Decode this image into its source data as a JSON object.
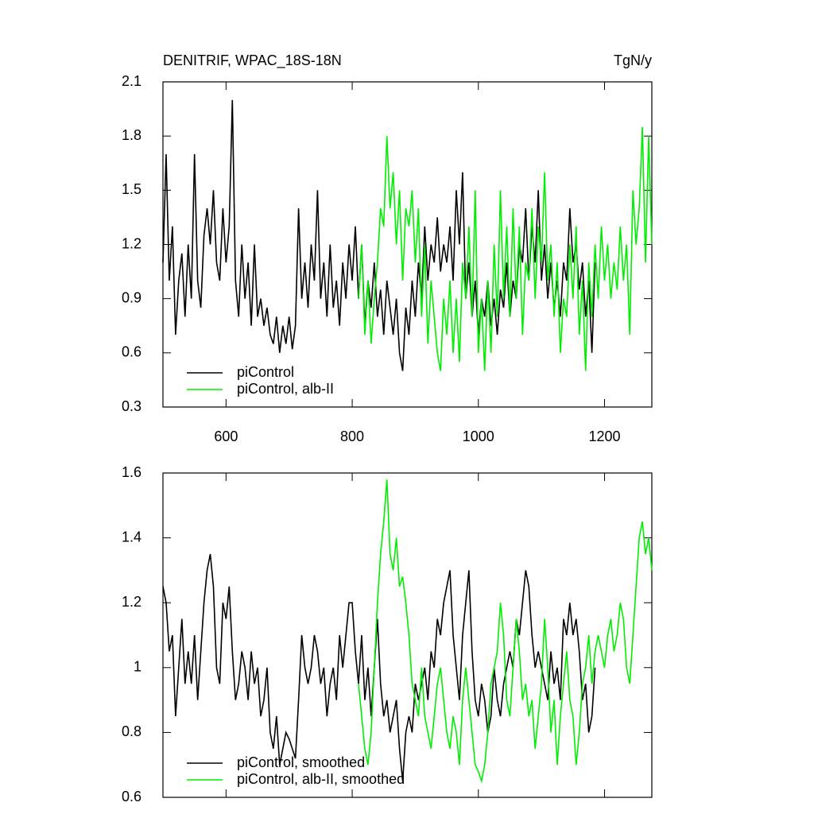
{
  "chart_data": [
    {
      "type": "line",
      "title": "DENITRIF, WPAC_18S-18N",
      "units": "TgN/y",
      "x": [
        500,
        505,
        510,
        515,
        520,
        525,
        530,
        535,
        540,
        545,
        550,
        555,
        560,
        565,
        570,
        575,
        580,
        585,
        590,
        595,
        600,
        605,
        610,
        615,
        620,
        625,
        630,
        635,
        640,
        645,
        650,
        655,
        660,
        665,
        670,
        675,
        680,
        685,
        690,
        695,
        700,
        705,
        710,
        715,
        720,
        725,
        730,
        735,
        740,
        745,
        750,
        755,
        760,
        765,
        770,
        775,
        780,
        785,
        790,
        795,
        800,
        805,
        810,
        815,
        820,
        825,
        830,
        835,
        840,
        845,
        850,
        855,
        860,
        865,
        870,
        875,
        880,
        885,
        890,
        895,
        900,
        905,
        910,
        915,
        920,
        925,
        930,
        935,
        940,
        945,
        950,
        955,
        960,
        965,
        970,
        975,
        980,
        985,
        990,
        995,
        1000,
        1005,
        1010,
        1015,
        1020,
        1025,
        1030,
        1035,
        1040,
        1045,
        1050,
        1055,
        1060,
        1065,
        1070,
        1075,
        1080,
        1085,
        1090,
        1095,
        1100,
        1105,
        1110,
        1115,
        1120,
        1125,
        1130,
        1135,
        1140,
        1145,
        1150,
        1155,
        1160,
        1165,
        1170,
        1175,
        1180,
        1185,
        1190,
        1195,
        1200,
        1205,
        1210,
        1215,
        1220,
        1225,
        1230,
        1235,
        1240,
        1245,
        1250,
        1255,
        1260,
        1265,
        1270,
        1275
      ],
      "series": [
        {
          "name": "piControl",
          "color": "#000000",
          "values": [
            1.1,
            1.7,
            1.0,
            1.3,
            0.7,
            1.0,
            1.15,
            0.8,
            1.2,
            0.9,
            1.7,
            1.0,
            0.85,
            1.25,
            1.4,
            1.2,
            1.5,
            1.1,
            1.0,
            1.4,
            1.1,
            1.3,
            2.0,
            1.0,
            0.8,
            1.2,
            0.9,
            1.1,
            0.75,
            1.2,
            0.8,
            0.9,
            0.75,
            0.85,
            0.7,
            0.65,
            0.8,
            0.6,
            0.75,
            0.65,
            0.8,
            0.62,
            0.75,
            1.4,
            0.9,
            1.1,
            0.85,
            1.2,
            1.0,
            1.5,
            0.9,
            1.1,
            0.8,
            1.2,
            0.85,
            1.0,
            0.75,
            1.1,
            0.9,
            1.2,
            1.0,
            1.3,
            0.9,
            1.2,
            0.75,
            1.0,
            0.85,
            1.1,
            0.8,
            0.95,
            0.7,
            1.0,
            0.85,
            0.7,
            0.9,
            0.6,
            0.5,
            0.85,
            0.7,
            1.0,
            0.8,
            1.1,
            0.9,
            1.3,
            1.0,
            1.2,
            1.1,
            1.35,
            1.05,
            1.2,
            1.1,
            1.3,
            1.0,
            1.5,
            1.2,
            1.6,
            0.9,
            1.1,
            0.8,
            1.0,
            0.7,
            0.9,
            0.8,
            1.0,
            0.75,
            0.9,
            0.7,
            0.95,
            0.85,
            1.1,
            0.8,
            1.0,
            0.9,
            1.2,
            1.1,
            1.4,
            1.0,
            1.3,
            1.1,
            1.5,
            1.0,
            1.2,
            0.9,
            1.1,
            0.85,
            1.0,
            0.8,
            1.1,
            1.0,
            1.4,
            1.1,
            1.2,
            0.95,
            1.1,
            0.8,
            1.0,
            0.6,
            1.1,
            null,
            null,
            null,
            null,
            null,
            null,
            null,
            null,
            null,
            null,
            null,
            null,
            null,
            null,
            null,
            null,
            null,
            null
          ]
        },
        {
          "name": "piControl, alb-II",
          "color": "#00ee00",
          "values": [
            null,
            null,
            null,
            null,
            null,
            null,
            null,
            null,
            null,
            null,
            null,
            null,
            null,
            null,
            null,
            null,
            null,
            null,
            null,
            null,
            null,
            null,
            null,
            null,
            null,
            null,
            null,
            null,
            null,
            null,
            null,
            null,
            null,
            null,
            null,
            null,
            null,
            null,
            null,
            null,
            null,
            null,
            null,
            null,
            null,
            null,
            null,
            null,
            null,
            null,
            null,
            null,
            null,
            null,
            null,
            null,
            null,
            null,
            null,
            null,
            null,
            null,
            0.9,
            1.2,
            0.7,
            1.0,
            0.65,
            0.9,
            1.1,
            1.4,
            1.3,
            1.8,
            1.4,
            1.6,
            1.2,
            1.5,
            1.0,
            1.4,
            1.3,
            1.5,
            1.1,
            1.4,
            0.8,
            1.2,
            0.65,
            1.0,
            0.8,
            0.6,
            0.5,
            0.9,
            0.7,
            1.0,
            0.6,
            0.9,
            0.55,
            1.1,
            0.9,
            1.3,
            0.8,
            1.5,
            0.6,
            0.9,
            0.5,
            1.0,
            0.6,
            1.2,
            0.8,
            1.5,
            0.9,
            1.3,
            0.8,
            1.4,
            0.9,
            1.3,
            0.7,
            1.1,
            1.0,
            1.4,
            0.9,
            1.3,
            1.1,
            1.6,
            1.0,
            1.2,
            0.8,
            1.1,
            0.6,
            0.9,
            0.8,
            1.2,
            0.9,
            1.3,
            0.7,
            1.0,
            0.5,
            1.1,
            0.8,
            1.2,
            0.9,
            1.3,
            1.0,
            1.2,
            0.9,
            1.1,
            0.95,
            1.3,
            1.0,
            1.2,
            0.7,
            1.5,
            1.2,
            1.4,
            1.85,
            1.1,
            1.8,
            1.2
          ]
        }
      ],
      "xlim": [
        500,
        1275
      ],
      "xticks": [
        600,
        800,
        1000,
        1200
      ],
      "ylim": [
        0.3,
        2.1
      ],
      "yticks": [
        0.3,
        0.6,
        0.9,
        1.2,
        1.5,
        1.8,
        2.1
      ],
      "legend": "lower left"
    },
    {
      "type": "line",
      "x": [
        500,
        505,
        510,
        515,
        520,
        525,
        530,
        535,
        540,
        545,
        550,
        555,
        560,
        565,
        570,
        575,
        580,
        585,
        590,
        595,
        600,
        605,
        610,
        615,
        620,
        625,
        630,
        635,
        640,
        645,
        650,
        655,
        660,
        665,
        670,
        675,
        680,
        685,
        690,
        695,
        700,
        705,
        710,
        715,
        720,
        725,
        730,
        735,
        740,
        745,
        750,
        755,
        760,
        765,
        770,
        775,
        780,
        785,
        790,
        795,
        800,
        805,
        810,
        815,
        820,
        825,
        830,
        835,
        840,
        845,
        850,
        855,
        860,
        865,
        870,
        875,
        880,
        885,
        890,
        895,
        900,
        905,
        910,
        915,
        920,
        925,
        930,
        935,
        940,
        945,
        950,
        955,
        960,
        965,
        970,
        975,
        980,
        985,
        990,
        995,
        1000,
        1005,
        1010,
        1015,
        1020,
        1025,
        1030,
        1035,
        1040,
        1045,
        1050,
        1055,
        1060,
        1065,
        1070,
        1075,
        1080,
        1085,
        1090,
        1095,
        1100,
        1105,
        1110,
        1115,
        1120,
        1125,
        1130,
        1135,
        1140,
        1145,
        1150,
        1155,
        1160,
        1165,
        1170,
        1175,
        1180,
        1185,
        1190,
        1195,
        1200,
        1205,
        1210,
        1215,
        1220,
        1225,
        1230,
        1235,
        1240,
        1245,
        1250,
        1255,
        1260,
        1265,
        1270,
        1275
      ],
      "series": [
        {
          "name": "piControl, smoothed",
          "color": "#000000",
          "values": [
            1.25,
            1.2,
            1.05,
            1.1,
            0.85,
            1.0,
            1.15,
            0.95,
            1.05,
            0.95,
            1.1,
            0.9,
            1.05,
            1.2,
            1.3,
            1.35,
            1.25,
            1.0,
            0.95,
            1.2,
            1.15,
            1.25,
            1.05,
            0.9,
            0.95,
            1.05,
            1.0,
            0.9,
            1.05,
            0.95,
            1.0,
            0.85,
            0.9,
            1.0,
            0.8,
            0.75,
            0.85,
            0.7,
            0.75,
            0.8,
            0.78,
            0.75,
            0.72,
            0.9,
            1.1,
            1.0,
            0.95,
            1.0,
            1.1,
            1.05,
            0.95,
            1.0,
            0.85,
            0.95,
            1.0,
            0.9,
            1.1,
            1.0,
            1.1,
            1.2,
            1.2,
            1.05,
            0.95,
            1.1,
            0.9,
            1.0,
            0.85,
            1.0,
            1.15,
            0.95,
            0.85,
            0.9,
            0.8,
            0.85,
            0.9,
            0.75,
            0.65,
            0.8,
            0.85,
            0.8,
            0.95,
            0.9,
            0.95,
            1.0,
            0.9,
            1.05,
            1.0,
            1.15,
            1.1,
            1.2,
            1.25,
            1.3,
            1.1,
            1.0,
            0.9,
            1.1,
            1.2,
            1.3,
            1.05,
            0.9,
            0.85,
            0.95,
            0.9,
            0.8,
            0.85,
            1.0,
            0.9,
            0.85,
            0.95,
            1.0,
            1.05,
            1.0,
            1.15,
            1.1,
            1.2,
            1.3,
            1.25,
            1.1,
            1.0,
            1.05,
            1.0,
            0.95,
            0.9,
            1.05,
            0.95,
            1.0,
            0.9,
            1.15,
            1.1,
            1.2,
            1.1,
            1.15,
            1.05,
            0.9,
            0.95,
            0.8,
            0.85,
            1.0,
            null,
            null,
            null,
            null,
            null,
            null,
            null,
            null,
            null,
            null,
            null,
            null,
            null,
            null,
            null,
            null,
            null,
            null
          ]
        },
        {
          "name": "piControl, alb-II, smoothed",
          "color": "#00ee00",
          "values": [
            null,
            null,
            null,
            null,
            null,
            null,
            null,
            null,
            null,
            null,
            null,
            null,
            null,
            null,
            null,
            null,
            null,
            null,
            null,
            null,
            null,
            null,
            null,
            null,
            null,
            null,
            null,
            null,
            null,
            null,
            null,
            null,
            null,
            null,
            null,
            null,
            null,
            null,
            null,
            null,
            null,
            null,
            null,
            null,
            null,
            null,
            null,
            null,
            null,
            null,
            null,
            null,
            null,
            null,
            null,
            null,
            null,
            null,
            null,
            null,
            null,
            null,
            0.95,
            0.85,
            0.75,
            0.7,
            0.8,
            1.0,
            1.2,
            1.35,
            1.45,
            1.58,
            1.35,
            1.3,
            1.4,
            1.25,
            1.28,
            1.2,
            1.1,
            0.95,
            0.9,
            0.85,
            1.0,
            0.85,
            0.8,
            0.75,
            0.85,
            0.95,
            1.0,
            0.9,
            0.8,
            0.75,
            0.85,
            0.8,
            0.7,
            0.9,
            1.0,
            0.9,
            0.8,
            0.7,
            0.68,
            0.65,
            0.7,
            0.8,
            0.95,
            1.0,
            1.05,
            1.2,
            1.1,
            0.9,
            0.85,
            1.0,
            1.15,
            1.05,
            0.9,
            0.95,
            0.85,
            0.9,
            0.75,
            0.85,
            0.95,
            1.15,
            1.0,
            0.8,
            0.9,
            0.7,
            0.85,
            0.95,
            1.05,
            0.9,
            0.85,
            0.7,
            0.8,
            0.95,
            1.0,
            1.1,
            0.95,
            1.05,
            1.1,
            1.05,
            1.0,
            1.1,
            1.15,
            1.05,
            1.1,
            1.2,
            1.15,
            1.0,
            0.95,
            1.1,
            1.25,
            1.4,
            1.45,
            1.35,
            1.4,
            1.3
          ]
        }
      ],
      "xlim": [
        500,
        1275
      ],
      "ylim": [
        0.6,
        1.6
      ],
      "yticks": [
        0.6,
        0.8,
        1.0,
        1.2,
        1.4,
        1.6
      ],
      "legend": "lower left"
    }
  ]
}
